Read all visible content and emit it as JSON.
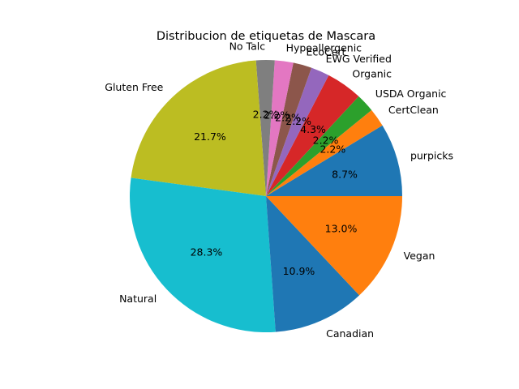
{
  "chart_data": {
    "type": "pie",
    "title": "Distribucion de etiquetas de Mascara",
    "start_angle": 0,
    "direction": "counterclockwise",
    "categories": [
      "purpicks",
      "CertClean",
      "USDA Organic",
      "Organic",
      "EWG Verified",
      "EcoCert",
      "Hypoallergenic",
      "No Talc",
      "Gluten Free",
      "Natural",
      "Canadian",
      "Vegan"
    ],
    "percent_labels": [
      "8.7%",
      "2.2%",
      "2.2%",
      "4.3%",
      "2.2%",
      "2.2%",
      "2.2%",
      "2.2%",
      "21.7%",
      "28.3%",
      "10.9%",
      "13.0%"
    ],
    "values": [
      8.7,
      2.2,
      2.2,
      4.3,
      2.2,
      2.2,
      2.2,
      2.2,
      21.7,
      28.3,
      10.9,
      13.0
    ],
    "colors": [
      "#1f77b4",
      "#ff7f0e",
      "#2ca02c",
      "#d62728",
      "#9467bd",
      "#8c564b",
      "#e377c2",
      "#7f7f7f",
      "#bcbd22",
      "#17becf",
      "#1f77b4",
      "#ff7f0e"
    ]
  }
}
